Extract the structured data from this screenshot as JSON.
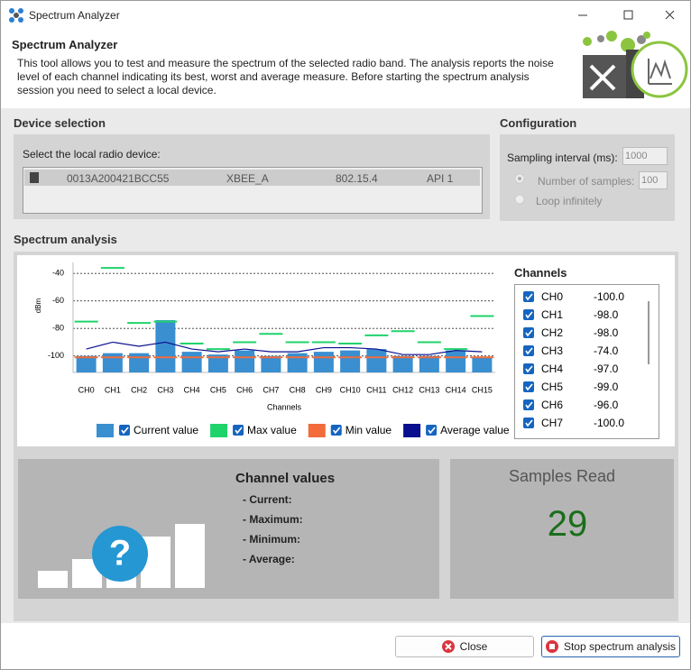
{
  "window_title": "Spectrum Analyzer",
  "header": {
    "title": "Spectrum Analyzer",
    "description": "This tool allows you to test and measure the spectrum of the selected radio band. The analysis reports the noise level of each channel indicating its best, worst and average measure. Before starting the spectrum analysis session you need to select a local device."
  },
  "device_selection": {
    "heading": "Device selection",
    "label": "Select the local radio device:",
    "row": [
      "0013A200421BCC55",
      "XBEE_A",
      "802.15.4",
      "API 1"
    ]
  },
  "configuration": {
    "heading": "Configuration",
    "sampling_label": "Sampling interval (ms):",
    "sampling_value": "1000",
    "samples_label": "Number of samples:",
    "samples_value": "100",
    "loop_label": "Loop infinitely"
  },
  "spectrum_heading": "Spectrum analysis",
  "chart_data": {
    "type": "bar",
    "y_label": "dBm",
    "x_label": "Channels",
    "categories": [
      "CH0",
      "CH1",
      "CH2",
      "CH3",
      "CH4",
      "CH5",
      "CH6",
      "CH7",
      "CH8",
      "CH9",
      "CH10",
      "CH11",
      "CH12",
      "CH13",
      "CH14",
      "CH15"
    ],
    "series": [
      {
        "name": "Current value",
        "type": "bar",
        "color": "#3a8fd0",
        "values": [
          -100,
          -98,
          -98,
          -74,
          -97,
          -99,
          -96,
          -100,
          -98,
          -97,
          -96,
          -95,
          -100,
          -100,
          -96,
          -101
        ]
      },
      {
        "name": "Max value",
        "type": "dash",
        "color": "#1fd36b",
        "values": [
          -75,
          -36,
          -76,
          -75,
          -91,
          -95,
          -90,
          -84,
          -90,
          -90,
          -91,
          -85,
          -82,
          -90,
          -95,
          -71
        ]
      },
      {
        "name": "Min value",
        "type": "dash",
        "color": "#f26b3a",
        "values": [
          -101,
          -101,
          -101,
          -101,
          -101,
          -101,
          -101,
          -101,
          -101,
          -101,
          -101,
          -101,
          -101,
          -101,
          -101,
          -101
        ]
      },
      {
        "name": "Average value",
        "type": "line",
        "color": "#0a0f8f",
        "values": [
          -95,
          -90,
          -93,
          -90,
          -95,
          -97,
          -95,
          -97,
          -97,
          -94,
          -94,
          -95,
          -99,
          -99,
          -96,
          -97
        ]
      }
    ],
    "ylim": [
      -112,
      -32
    ],
    "yticks": [
      -40,
      -60,
      -80,
      -100
    ],
    "grid": true
  },
  "channels": {
    "heading": "Channels",
    "rows": [
      [
        "CH0",
        "-100.0"
      ],
      [
        "CH1",
        "-98.0"
      ],
      [
        "CH2",
        "-98.0"
      ],
      [
        "CH3",
        "-74.0"
      ],
      [
        "CH4",
        "-97.0"
      ],
      [
        "CH5",
        "-99.0"
      ],
      [
        "CH6",
        "-96.0"
      ],
      [
        "CH7",
        "-100.0"
      ]
    ]
  },
  "channel_values": {
    "title": "Channel values",
    "items": [
      "- Current:",
      "- Maximum:",
      "- Minimum:",
      "- Average:"
    ]
  },
  "samples": {
    "title": "Samples Read",
    "value": 29
  },
  "buttons": {
    "close": "Close",
    "stop": "Stop spectrum analysis"
  }
}
